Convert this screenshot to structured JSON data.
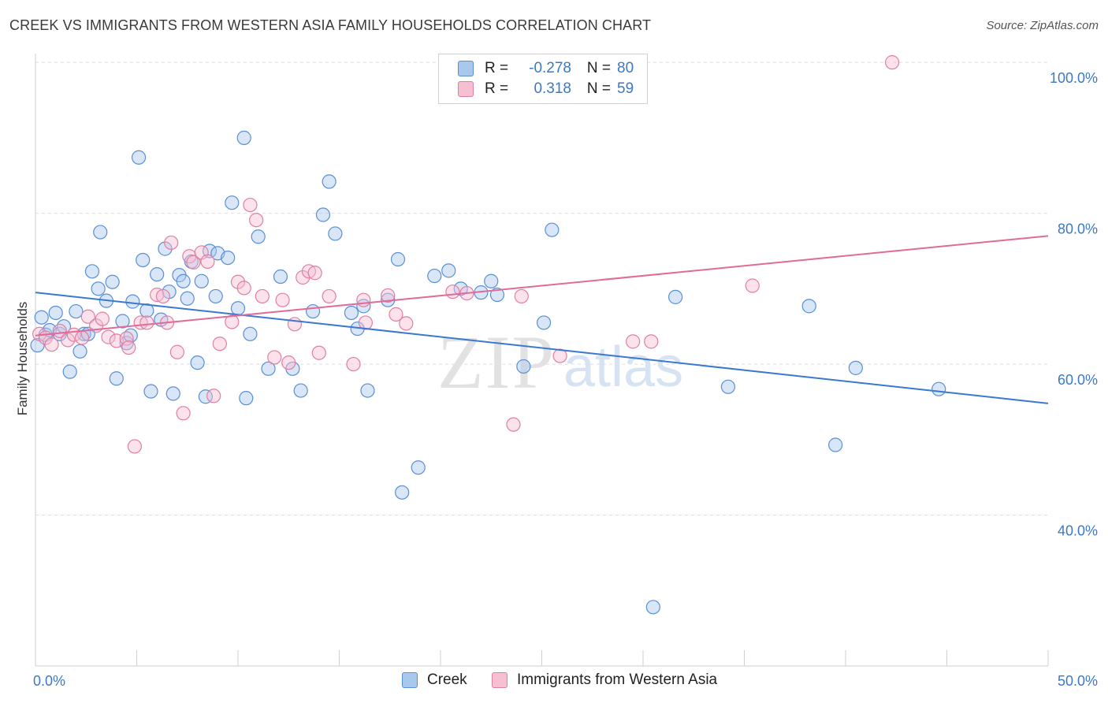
{
  "title": "CREEK VS IMMIGRANTS FROM WESTERN ASIA FAMILY HOUSEHOLDS CORRELATION CHART",
  "source": "Source: ZipAtlas.com",
  "watermark": {
    "zip": "ZIP",
    "atlas": "atlas"
  },
  "legend": {
    "rows": [
      {
        "r_label": "R =",
        "r_value": "-0.278",
        "n_label": "N =",
        "n_value": "80",
        "color": "#a9c8ee",
        "stroke": "#5a8fd6"
      },
      {
        "r_label": "R =",
        "r_value": "0.318",
        "n_label": "N =",
        "n_value": "59",
        "color": "#f6bfd2",
        "stroke": "#e07fa3"
      }
    ]
  },
  "bottom_legend": {
    "items": [
      {
        "label": "Creek",
        "color": "#a9c8ee",
        "stroke": "#5a8fd6"
      },
      {
        "label": "Immigrants from Western Asia",
        "color": "#f6bfd2",
        "stroke": "#e07fa3"
      }
    ]
  },
  "chart_data": {
    "type": "scatter",
    "title": "CREEK VS IMMIGRANTS FROM WESTERN ASIA FAMILY HOUSEHOLDS CORRELATION CHART",
    "xlabel": "",
    "ylabel": "Family Households",
    "xlim": [
      0,
      50
    ],
    "ylim": [
      20,
      102
    ],
    "x_tick_labels": {
      "left": "0.0%",
      "right": "50.0%"
    },
    "y_ticks": [
      {
        "value": 40,
        "label": "40.0%"
      },
      {
        "value": 60,
        "label": "60.0%"
      },
      {
        "value": 80,
        "label": "80.0%"
      },
      {
        "value": 100,
        "label": "100.0%"
      }
    ],
    "grid": true,
    "legend_position": "top-center",
    "series": [
      {
        "name": "Creek",
        "color": "#5a8fd6",
        "fill": "#a9c8ee",
        "trend": {
          "x": [
            0,
            50
          ],
          "y": [
            69.5,
            54.8
          ],
          "color": "#3b78d0"
        },
        "points": [
          [
            0.1,
            62.5
          ],
          [
            0.3,
            66.2
          ],
          [
            0.5,
            63.9
          ],
          [
            0.7,
            64.5
          ],
          [
            1.0,
            66.8
          ],
          [
            1.2,
            64.0
          ],
          [
            1.4,
            65.0
          ],
          [
            1.7,
            59.0
          ],
          [
            2.0,
            67.0
          ],
          [
            2.2,
            61.7
          ],
          [
            2.4,
            64.0
          ],
          [
            2.6,
            64.0
          ],
          [
            2.8,
            72.3
          ],
          [
            3.1,
            70.0
          ],
          [
            3.2,
            77.5
          ],
          [
            3.5,
            68.4
          ],
          [
            3.8,
            70.9
          ],
          [
            4.0,
            58.1
          ],
          [
            4.3,
            65.7
          ],
          [
            4.5,
            62.8
          ],
          [
            4.7,
            63.8
          ],
          [
            4.8,
            68.3
          ],
          [
            5.1,
            87.4
          ],
          [
            5.3,
            73.8
          ],
          [
            5.5,
            67.1
          ],
          [
            5.7,
            56.4
          ],
          [
            6.0,
            71.9
          ],
          [
            6.2,
            65.9
          ],
          [
            6.4,
            75.3
          ],
          [
            6.6,
            69.6
          ],
          [
            6.8,
            56.1
          ],
          [
            7.1,
            71.8
          ],
          [
            7.3,
            71.0
          ],
          [
            7.5,
            68.7
          ],
          [
            7.7,
            73.6
          ],
          [
            8.0,
            60.2
          ],
          [
            8.2,
            71.0
          ],
          [
            8.4,
            55.7
          ],
          [
            8.6,
            75.0
          ],
          [
            8.9,
            69.0
          ],
          [
            9.0,
            74.7
          ],
          [
            9.5,
            74.1
          ],
          [
            9.7,
            81.4
          ],
          [
            10.0,
            67.4
          ],
          [
            10.4,
            55.5
          ],
          [
            10.6,
            64.0
          ],
          [
            10.3,
            90.0
          ],
          [
            11.0,
            76.9
          ],
          [
            11.5,
            59.4
          ],
          [
            12.1,
            71.6
          ],
          [
            12.7,
            59.4
          ],
          [
            13.1,
            56.5
          ],
          [
            13.7,
            67.0
          ],
          [
            14.2,
            79.8
          ],
          [
            14.5,
            84.2
          ],
          [
            14.8,
            77.3
          ],
          [
            15.6,
            66.8
          ],
          [
            15.9,
            64.7
          ],
          [
            16.2,
            67.7
          ],
          [
            16.4,
            56.5
          ],
          [
            17.4,
            68.5
          ],
          [
            17.9,
            73.9
          ],
          [
            18.1,
            43.0
          ],
          [
            18.9,
            46.3
          ],
          [
            19.7,
            71.7
          ],
          [
            20.4,
            72.4
          ],
          [
            21.0,
            70.0
          ],
          [
            22.0,
            69.5
          ],
          [
            22.5,
            71.0
          ],
          [
            22.8,
            69.2
          ],
          [
            24.1,
            59.7
          ],
          [
            25.1,
            65.5
          ],
          [
            25.5,
            77.8
          ],
          [
            30.5,
            27.8
          ],
          [
            31.6,
            68.9
          ],
          [
            34.2,
            57.0
          ],
          [
            38.2,
            67.7
          ],
          [
            39.5,
            49.3
          ],
          [
            40.5,
            59.5
          ],
          [
            44.6,
            56.7
          ]
        ]
      },
      {
        "name": "Immigrants from Western Asia",
        "color": "#e07fa3",
        "fill": "#f6bfd2",
        "trend": {
          "x": [
            0,
            50
          ],
          "y": [
            63.8,
            77.0
          ],
          "color": "#e06a98"
        },
        "points": [
          [
            0.2,
            64.0
          ],
          [
            0.5,
            63.5
          ],
          [
            0.8,
            62.6
          ],
          [
            1.2,
            64.4
          ],
          [
            1.6,
            63.2
          ],
          [
            1.9,
            63.9
          ],
          [
            2.3,
            63.5
          ],
          [
            2.6,
            66.3
          ],
          [
            3.0,
            65.1
          ],
          [
            3.3,
            66.0
          ],
          [
            3.6,
            63.6
          ],
          [
            4.0,
            63.1
          ],
          [
            4.5,
            63.4
          ],
          [
            4.6,
            62.2
          ],
          [
            4.9,
            49.1
          ],
          [
            5.2,
            65.5
          ],
          [
            5.5,
            65.5
          ],
          [
            6.0,
            69.2
          ],
          [
            6.3,
            69.0
          ],
          [
            6.5,
            65.5
          ],
          [
            6.7,
            76.1
          ],
          [
            7.0,
            61.6
          ],
          [
            7.3,
            53.5
          ],
          [
            7.6,
            74.3
          ],
          [
            7.8,
            73.5
          ],
          [
            8.2,
            74.8
          ],
          [
            8.5,
            73.6
          ],
          [
            8.8,
            55.8
          ],
          [
            9.1,
            62.7
          ],
          [
            9.7,
            65.6
          ],
          [
            10.0,
            70.9
          ],
          [
            10.3,
            70.1
          ],
          [
            10.6,
            81.1
          ],
          [
            10.9,
            79.1
          ],
          [
            11.2,
            69.0
          ],
          [
            11.8,
            60.9
          ],
          [
            12.2,
            68.5
          ],
          [
            12.5,
            60.2
          ],
          [
            12.8,
            65.3
          ],
          [
            13.2,
            71.5
          ],
          [
            13.5,
            72.3
          ],
          [
            13.8,
            72.1
          ],
          [
            14.0,
            61.5
          ],
          [
            14.5,
            69.0
          ],
          [
            15.7,
            60.0
          ],
          [
            16.2,
            68.5
          ],
          [
            16.3,
            65.5
          ],
          [
            17.4,
            69.1
          ],
          [
            17.8,
            66.6
          ],
          [
            18.3,
            65.4
          ],
          [
            20.6,
            69.6
          ],
          [
            21.3,
            69.4
          ],
          [
            23.6,
            52.0
          ],
          [
            24.0,
            69.0
          ],
          [
            25.9,
            61.1
          ],
          [
            29.5,
            63.0
          ],
          [
            30.4,
            63.0
          ],
          [
            35.4,
            70.4
          ],
          [
            42.3,
            100.0
          ]
        ]
      }
    ]
  }
}
